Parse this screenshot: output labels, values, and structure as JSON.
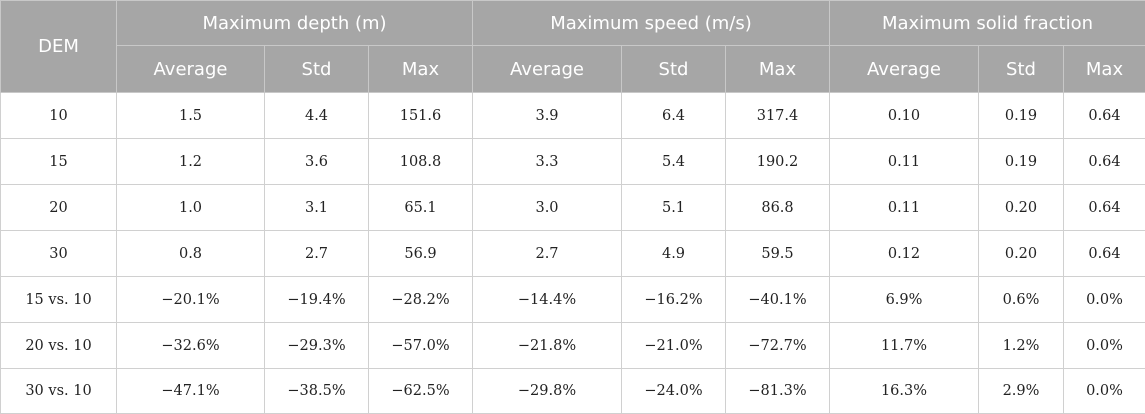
{
  "header": {
    "dem": "DEM",
    "groups": [
      "Maximum depth (m)",
      "Maximum speed (m/s)",
      "Maximum solid fraction"
    ],
    "sub": [
      "Average",
      "Std",
      "Max"
    ]
  },
  "rows": [
    [
      "10",
      "1.5",
      "4.4",
      "151.6",
      "3.9",
      "6.4",
      "317.4",
      "0.10",
      "0.19",
      "0.64"
    ],
    [
      "15",
      "1.2",
      "3.6",
      "108.8",
      "3.3",
      "5.4",
      "190.2",
      "0.11",
      "0.19",
      "0.64"
    ],
    [
      "20",
      "1.0",
      "3.1",
      "65.1",
      "3.0",
      "5.1",
      "86.8",
      "0.11",
      "0.20",
      "0.64"
    ],
    [
      "30",
      "0.8",
      "2.7",
      "56.9",
      "2.7",
      "4.9",
      "59.5",
      "0.12",
      "0.20",
      "0.64"
    ],
    [
      "15 vs. 10",
      "−20.1%",
      "−19.4%",
      "−28.2%",
      "−14.4%",
      "−16.2%",
      "−40.1%",
      "6.9%",
      "0.6%",
      "0.0%"
    ],
    [
      "20 vs. 10",
      "−32.6%",
      "−29.3%",
      "−57.0%",
      "−21.8%",
      "−21.0%",
      "−72.7%",
      "11.7%",
      "1.2%",
      "0.0%"
    ],
    [
      "30 vs. 10",
      "−47.1%",
      "−38.5%",
      "−62.5%",
      "−29.8%",
      "−24.0%",
      "−81.3%",
      "16.3%",
      "2.9%",
      "0.0%"
    ]
  ]
}
